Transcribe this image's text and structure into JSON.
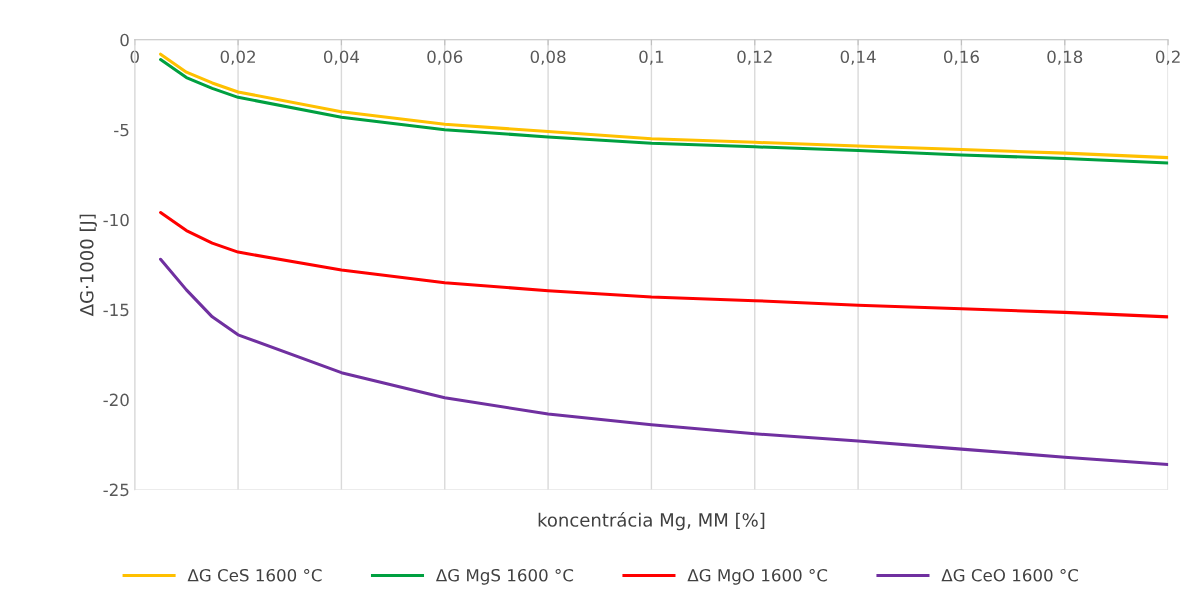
{
  "chart_data": {
    "type": "line",
    "xlabel": "koncentrácia Mg, MM [%]",
    "ylabel": "ΔG·1000 [J]",
    "xlim": [
      0,
      0.2
    ],
    "ylim": [
      -25,
      0
    ],
    "xticks": [
      0,
      {
        "value": 0.02,
        "label": "0,02"
      },
      {
        "value": 0.04,
        "label": "0,04"
      },
      {
        "value": 0.06,
        "label": "0,06"
      },
      {
        "value": 0.08,
        "label": "0,08"
      },
      {
        "value": 0.1,
        "label": "0,1"
      },
      {
        "value": 0.12,
        "label": "0,12"
      },
      {
        "value": 0.14,
        "label": "0,14"
      },
      {
        "value": 0.16,
        "label": "0,16"
      },
      {
        "value": 0.18,
        "label": "0,18"
      },
      {
        "value": 0.2,
        "label": "0,2"
      }
    ],
    "yticks": [
      -25,
      -20,
      -15,
      -10,
      -5,
      0
    ],
    "x": [
      0.005,
      0.01,
      0.015,
      0.02,
      0.04,
      0.06,
      0.08,
      0.1,
      0.12,
      0.14,
      0.16,
      0.18,
      0.2
    ],
    "grid": "x",
    "legend": "bottom",
    "marker": "none",
    "line_style": "solid",
    "series": [
      {
        "name": "ΔG CeS 1600 °C",
        "color": "#ffc000",
        "values": [
          -0.8,
          -1.8,
          -2.4,
          -2.9,
          -4.0,
          -4.7,
          -5.1,
          -5.5,
          -5.7,
          -5.9,
          -6.1,
          -6.3,
          -6.55
        ]
      },
      {
        "name": "ΔG MgS 1600 °C",
        "color": "#00a040",
        "values": [
          -1.1,
          -2.1,
          -2.7,
          -3.2,
          -4.3,
          -5.0,
          -5.4,
          -5.75,
          -5.95,
          -6.15,
          -6.4,
          -6.6,
          -6.85
        ]
      },
      {
        "name": "ΔG MgO 1600 °C",
        "color": "#ff0000",
        "values": [
          -9.6,
          -10.6,
          -11.3,
          -11.8,
          -12.8,
          -13.5,
          -13.95,
          -14.3,
          -14.5,
          -14.75,
          -14.95,
          -15.15,
          -15.4
        ]
      },
      {
        "name": "ΔG CeO 1600 °C",
        "color": "#7030a0",
        "values": [
          -12.2,
          -13.9,
          -15.4,
          -16.4,
          -18.5,
          -19.9,
          -20.8,
          -21.4,
          -21.9,
          -22.3,
          -22.75,
          -23.2,
          -23.6
        ]
      }
    ]
  }
}
